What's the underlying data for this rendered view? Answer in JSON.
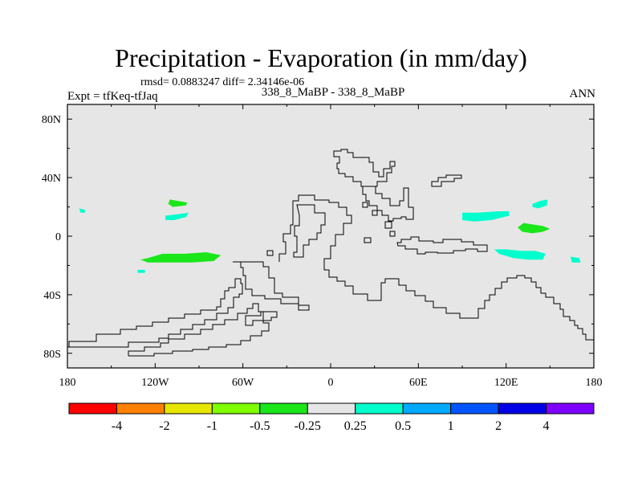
{
  "title": "Precipitation - Evaporation (in mm/day)",
  "stats": "rmsd= 0.0883247  diff= 2.34146e-06",
  "expt": "Expt = tfKeq-tfJaq",
  "center_label": "338_8_MaBP - 338_8_MaBP",
  "season": "ANN",
  "map": {
    "background_color": "#e6e6e6",
    "lon_range": [
      -180,
      180
    ],
    "lat_range": [
      -90,
      90
    ],
    "x_ticks": [
      {
        "lon": -180,
        "label": "180"
      },
      {
        "lon": -120,
        "label": "120W"
      },
      {
        "lon": -60,
        "label": "60W"
      },
      {
        "lon": 0,
        "label": "0"
      },
      {
        "lon": 60,
        "label": "60E"
      },
      {
        "lon": 120,
        "label": "120E"
      },
      {
        "lon": 180,
        "label": "180"
      }
    ],
    "y_ticks": [
      {
        "lat": 80,
        "label": "80N"
      },
      {
        "lat": 40,
        "label": "40N"
      },
      {
        "lat": 0,
        "label": "0"
      },
      {
        "lat": -40,
        "label": "40S"
      },
      {
        "lat": -80,
        "label": "80S"
      }
    ]
  },
  "colorbar": {
    "colors": [
      "#ff0000",
      "#ff8000",
      "#e6e600",
      "#80ff00",
      "#1ae61a",
      "#e6e6e6",
      "#00ffcc",
      "#00aaff",
      "#0055ff",
      "#0000e6",
      "#7f00ff"
    ],
    "labels": [
      "-4",
      "-2",
      "-1",
      "-0.5",
      "-0.25",
      "0.25",
      "0.5",
      "1",
      "2",
      "4"
    ]
  },
  "contours": [
    {
      "value": "-0.25",
      "color": "#1ae61a",
      "points": [
        [
          -125,
          -15
        ],
        [
          -115,
          -12
        ],
        [
          -100,
          -12
        ],
        [
          -85,
          -11
        ],
        [
          -75,
          -13
        ],
        [
          -80,
          -17
        ],
        [
          -95,
          -18
        ],
        [
          -110,
          -18
        ],
        [
          -125,
          -18
        ],
        [
          -130,
          -16
        ]
      ]
    },
    {
      "value": "-0.25",
      "color": "#1ae61a",
      "points": [
        [
          -110,
          25
        ],
        [
          -104,
          24
        ],
        [
          -98,
          23
        ],
        [
          -99,
          21
        ],
        [
          -108,
          20
        ],
        [
          -111,
          22
        ]
      ]
    },
    {
      "value": "-0.25",
      "color": "#1ae61a",
      "points": [
        [
          132,
          9
        ],
        [
          138,
          8
        ],
        [
          145,
          7
        ],
        [
          150,
          5
        ],
        [
          145,
          3
        ],
        [
          138,
          2
        ],
        [
          131,
          3
        ],
        [
          128,
          6
        ]
      ]
    },
    {
      "value": "0.5",
      "color": "#00ffcc",
      "points": [
        [
          -113,
          14
        ],
        [
          -105,
          15
        ],
        [
          -97,
          16
        ],
        [
          -99,
          13
        ],
        [
          -107,
          11
        ],
        [
          -113,
          11
        ]
      ]
    },
    {
      "value": "0.5",
      "color": "#00ffcc",
      "points": [
        [
          90,
          16
        ],
        [
          100,
          16
        ],
        [
          115,
          17
        ],
        [
          122,
          17
        ],
        [
          122,
          14
        ],
        [
          110,
          11
        ],
        [
          98,
          10
        ],
        [
          90,
          11
        ]
      ]
    },
    {
      "value": "0.5",
      "color": "#00ffcc",
      "points": [
        [
          112,
          -9
        ],
        [
          120,
          -9
        ],
        [
          130,
          -10
        ],
        [
          140,
          -10
        ],
        [
          147,
          -12
        ],
        [
          145,
          -16
        ],
        [
          135,
          -16
        ],
        [
          125,
          -15
        ],
        [
          115,
          -12
        ]
      ]
    },
    {
      "value": "0.5",
      "color": "#00ffcc",
      "points": [
        [
          138,
          22
        ],
        [
          143,
          24
        ],
        [
          148,
          25
        ],
        [
          148,
          21
        ],
        [
          142,
          19
        ],
        [
          138,
          20
        ]
      ]
    },
    {
      "value": "0.5",
      "color": "#00ffcc",
      "points": [
        [
          164,
          -14
        ],
        [
          170,
          -15
        ],
        [
          171,
          -18
        ],
        [
          165,
          -18
        ]
      ]
    },
    {
      "value": "0.5",
      "color": "#00ffcc",
      "points": [
        [
          -172,
          19
        ],
        [
          -168,
          18
        ],
        [
          -168,
          16
        ],
        [
          -171,
          16
        ]
      ]
    },
    {
      "value": "0.5",
      "color": "#00ffcc",
      "points": [
        [
          -132,
          -23
        ],
        [
          -127,
          -23
        ],
        [
          -127,
          -25
        ],
        [
          -132,
          -25
        ]
      ]
    }
  ]
}
